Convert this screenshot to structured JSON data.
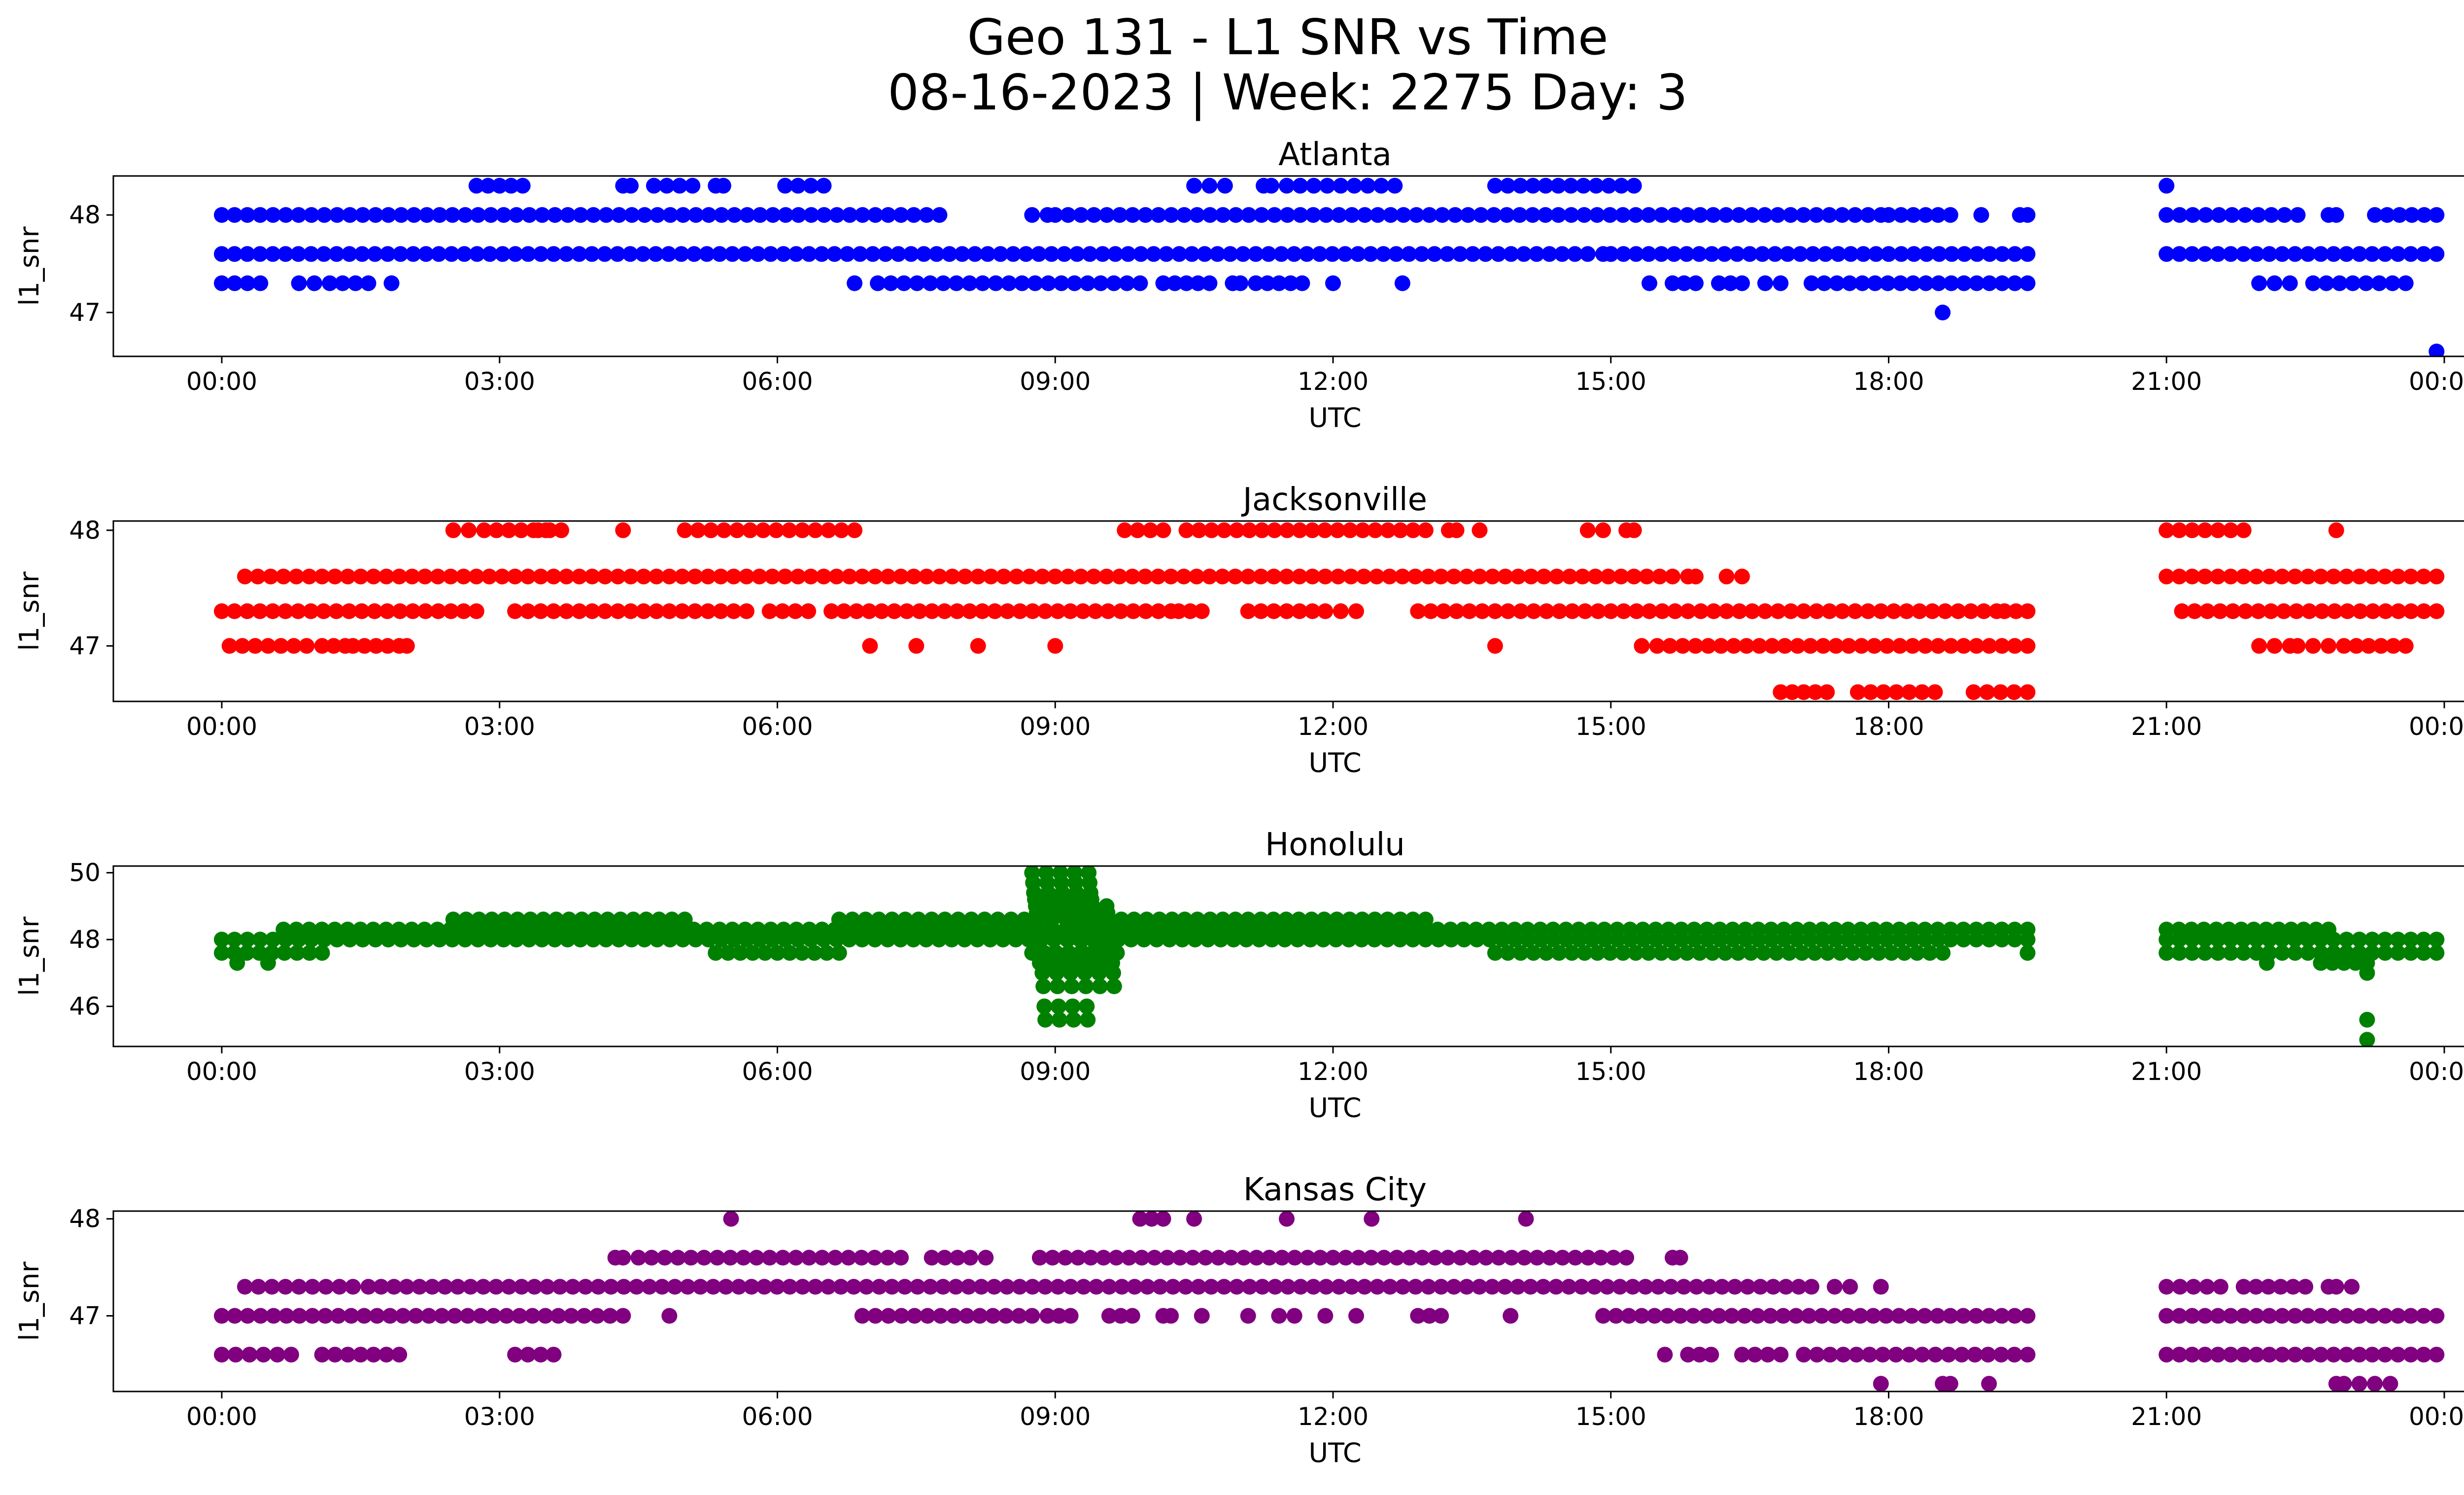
{
  "figure": {
    "title_line1": "Geo 131 - L1 SNR vs Time",
    "title_line2": "08-16-2023 | Week: 2275 Day: 3"
  },
  "chart_data": [
    {
      "type": "scatter",
      "title": "Atlanta",
      "xlabel": "UTC",
      "ylabel": "l1_snr",
      "color": "#0000ff",
      "xlim": [
        "2023-08-16T00:00",
        "2023-08-17T00:00"
      ],
      "ylim": [
        46.55,
        48.4
      ],
      "xticks": [
        "00:00",
        "03:00",
        "06:00",
        "09:00",
        "12:00",
        "15:00",
        "18:00",
        "21:00",
        "00:00"
      ],
      "yticks": [
        47,
        48
      ],
      "levels": [
        {
          "y": 48.3,
          "x_runs": [
            [
              "02:45",
              "03:15"
            ],
            [
              "04:20",
              "04:25"
            ],
            [
              "04:40",
              "05:05"
            ],
            [
              "05:20",
              "05:25"
            ],
            [
              "06:05",
              "06:30"
            ],
            [
              "10:30",
              "10:50"
            ],
            [
              "11:15",
              "11:20"
            ],
            [
              "11:30",
              "12:40"
            ],
            [
              "13:45",
              "15:15"
            ],
            [
              "21:00",
              "21:00"
            ]
          ]
        },
        {
          "y": 48.0,
          "x_runs": [
            [
              "00:00",
              "07:45"
            ],
            [
              "08:45",
              "08:55"
            ],
            [
              "09:00",
              "17:55"
            ],
            [
              "18:00",
              "18:40"
            ],
            [
              "19:00",
              "19:00"
            ],
            [
              "19:25",
              "19:30"
            ],
            [
              "21:00",
              "22:25"
            ],
            [
              "22:45",
              "22:50"
            ],
            [
              "23:15",
              "23:55"
            ]
          ]
        },
        {
          "y": 47.6,
          "x_runs": [
            [
              "00:00",
              "14:45"
            ],
            [
              "14:55",
              "15:00"
            ],
            [
              "15:00",
              "19:30"
            ],
            [
              "21:00",
              "23:55"
            ]
          ]
        },
        {
          "y": 47.3,
          "x_runs": [
            [
              "00:00",
              "00:25"
            ],
            [
              "00:50",
              "01:00"
            ],
            [
              "01:10",
              "01:35"
            ],
            [
              "01:50",
              "01:50"
            ],
            [
              "06:50",
              "06:50"
            ],
            [
              "07:05",
              "09:55"
            ],
            [
              "10:10",
              "10:40"
            ],
            [
              "10:55",
              "11:00"
            ],
            [
              "11:10",
              "11:40"
            ],
            [
              "12:00",
              "12:00"
            ],
            [
              "12:45",
              "12:45"
            ],
            [
              "15:25",
              "15:25"
            ],
            [
              "15:40",
              "15:55"
            ],
            [
              "16:10",
              "16:25"
            ],
            [
              "16:40",
              "16:50"
            ],
            [
              "17:10",
              "19:30"
            ],
            [
              "22:00",
              "22:20"
            ],
            [
              "22:35",
              "23:35"
            ]
          ]
        },
        {
          "y": 47.0,
          "x_runs": [
            [
              "18:35",
              "18:35"
            ]
          ]
        },
        {
          "y": 46.6,
          "x_runs": [
            [
              "23:55",
              "23:55"
            ]
          ]
        }
      ]
    },
    {
      "type": "scatter",
      "title": "Jacksonville",
      "xlabel": "UTC",
      "ylabel": "l1_snr",
      "color": "#ff0000",
      "xlim": [
        "2023-08-16T00:00",
        "2023-08-17T00:00"
      ],
      "ylim": [
        46.52,
        48.08
      ],
      "xticks": [
        "00:00",
        "03:00",
        "06:00",
        "09:00",
        "12:00",
        "15:00",
        "18:00",
        "21:00",
        "00:00"
      ],
      "yticks": [
        47,
        48
      ],
      "levels": [
        {
          "y": 48.0,
          "x_runs": [
            [
              "02:30",
              "02:40"
            ],
            [
              "02:50",
              "03:30"
            ],
            [
              "03:25",
              "03:40"
            ],
            [
              "04:20",
              "04:20"
            ],
            [
              "05:00",
              "06:50"
            ],
            [
              "09:45",
              "10:10"
            ],
            [
              "10:25",
              "13:00"
            ],
            [
              "13:15",
              "13:20"
            ],
            [
              "13:35",
              "13:35"
            ],
            [
              "14:45",
              "14:55"
            ],
            [
              "15:10",
              "15:15"
            ],
            [
              "21:00",
              "21:50"
            ],
            [
              "22:50",
              "22:50"
            ]
          ]
        },
        {
          "y": 47.6,
          "x_runs": [
            [
              "00:15",
              "15:40"
            ],
            [
              "15:50",
              "15:55"
            ],
            [
              "16:15",
              "16:25"
            ],
            [
              "21:00",
              "23:55"
            ]
          ]
        },
        {
          "y": 47.3,
          "x_runs": [
            [
              "00:00",
              "02:45"
            ],
            [
              "03:10",
              "05:40"
            ],
            [
              "05:55",
              "06:20"
            ],
            [
              "06:35",
              "10:15"
            ],
            [
              "10:20",
              "10:35"
            ],
            [
              "11:05",
              "11:55"
            ],
            [
              "12:05",
              "12:15"
            ],
            [
              "12:55",
              "19:10"
            ],
            [
              "19:15",
              "19:30"
            ],
            [
              "21:10",
              "23:55"
            ]
          ]
        },
        {
          "y": 47.0,
          "x_runs": [
            [
              "00:05",
              "00:55"
            ],
            [
              "01:05",
              "01:20"
            ],
            [
              "01:25",
              "01:55"
            ],
            [
              "02:00",
              "02:00"
            ],
            [
              "07:00",
              "07:00"
            ],
            [
              "07:30",
              "07:30"
            ],
            [
              "08:10",
              "08:10"
            ],
            [
              "09:00",
              "09:00"
            ],
            [
              "13:45",
              "13:45"
            ],
            [
              "15:20",
              "15:20"
            ],
            [
              "15:30",
              "19:30"
            ],
            [
              "22:00",
              "22:20"
            ],
            [
              "22:25",
              "22:45"
            ],
            [
              "22:55",
              "23:35"
            ]
          ]
        },
        {
          "y": 46.6,
          "x_runs": [
            [
              "16:50",
              "17:20"
            ],
            [
              "17:40",
              "18:30"
            ],
            [
              "18:55",
              "19:30"
            ]
          ]
        }
      ]
    },
    {
      "type": "scatter",
      "title": "Honolulu",
      "xlabel": "UTC",
      "ylabel": "l1_snr",
      "color": "#008000",
      "xlim": [
        "2023-08-16T00:00",
        "2023-08-17T00:00"
      ],
      "ylim": [
        44.8,
        50.2
      ],
      "xticks": [
        "00:00",
        "03:00",
        "06:00",
        "09:00",
        "12:00",
        "15:00",
        "18:00",
        "21:00",
        "00:00"
      ],
      "yticks": [
        46,
        48,
        50
      ],
      "levels": [
        {
          "y": 48.6,
          "x_runs": [
            [
              "02:30",
              "05:00"
            ],
            [
              "06:40",
              "08:40"
            ],
            [
              "09:10",
              "13:00"
            ]
          ]
        },
        {
          "y": 48.3,
          "x_runs": [
            [
              "00:40",
              "19:30"
            ],
            [
              "21:00",
              "22:45"
            ]
          ]
        },
        {
          "y": 48.0,
          "x_runs": [
            [
              "00:00",
              "19:30"
            ],
            [
              "21:00",
              "23:55"
            ]
          ]
        },
        {
          "y": 47.6,
          "x_runs": [
            [
              "00:00",
              "01:05"
            ],
            [
              "05:20",
              "06:40"
            ],
            [
              "08:45",
              "09:40"
            ],
            [
              "13:45",
              "18:35"
            ],
            [
              "19:30",
              "19:30"
            ],
            [
              "21:00",
              "23:55"
            ]
          ]
        },
        {
          "y": 47.3,
          "x_runs": [
            [
              "00:10",
              "00:10"
            ],
            [
              "00:30",
              "00:30"
            ],
            [
              "08:50",
              "09:30"
            ],
            [
              "22:05",
              "22:05"
            ],
            [
              "22:40",
              "23:10"
            ]
          ]
        }
      ],
      "spike": {
        "x_range": [
          "08:45",
          "09:40"
        ],
        "y_values": [
          50.0,
          49.7,
          49.4,
          49.2,
          49.0,
          48.8,
          48.6,
          48.3,
          48.0,
          47.6,
          47.3,
          47.0,
          46.6,
          46.0,
          45.6
        ],
        "extra_points": [
          {
            "x": "23:10",
            "y": 47.0
          },
          {
            "x": "23:10",
            "y": 45.6
          },
          {
            "x": "23:10",
            "y": 45.0
          }
        ]
      }
    },
    {
      "type": "scatter",
      "title": "Kansas City",
      "xlabel": "UTC",
      "ylabel": "l1_snr",
      "color": "#800080",
      "xlim": [
        "2023-08-16T00:00",
        "2023-08-17T00:00"
      ],
      "ylim": [
        46.22,
        48.08
      ],
      "xticks": [
        "00:00",
        "03:00",
        "06:00",
        "09:00",
        "12:00",
        "15:00",
        "18:00",
        "21:00",
        "00:00"
      ],
      "yticks": [
        47,
        48
      ],
      "levels": [
        {
          "y": 48.0,
          "x_runs": [
            [
              "05:30",
              "05:30"
            ],
            [
              "09:55",
              "10:10"
            ],
            [
              "10:30",
              "10:30"
            ],
            [
              "11:30",
              "11:30"
            ],
            [
              "12:25",
              "12:25"
            ],
            [
              "14:05",
              "14:05"
            ]
          ]
        },
        {
          "y": 47.6,
          "x_runs": [
            [
              "04:15",
              "04:20"
            ],
            [
              "04:30",
              "07:20"
            ],
            [
              "07:40",
              "08:05"
            ],
            [
              "08:15",
              "08:15"
            ],
            [
              "08:50",
              "15:10"
            ],
            [
              "15:40",
              "15:45"
            ]
          ]
        },
        {
          "y": 47.3,
          "x_runs": [
            [
              "00:15",
              "01:25"
            ],
            [
              "01:35",
              "17:10"
            ],
            [
              "17:25",
              "17:35"
            ],
            [
              "17:55",
              "17:55"
            ],
            [
              "21:00",
              "21:35"
            ],
            [
              "21:50",
              "22:30"
            ],
            [
              "22:45",
              "22:50"
            ],
            [
              "23:00",
              "23:00"
            ]
          ]
        },
        {
          "y": 47.0,
          "x_runs": [
            [
              "00:00",
              "04:20"
            ],
            [
              "04:50",
              "04:50"
            ],
            [
              "06:55",
              "08:45"
            ],
            [
              "08:55",
              "09:10"
            ],
            [
              "09:35",
              "09:50"
            ],
            [
              "10:10",
              "10:15"
            ],
            [
              "10:35",
              "10:35"
            ],
            [
              "11:05",
              "11:05"
            ],
            [
              "11:25",
              "11:35"
            ],
            [
              "11:55",
              "11:55"
            ],
            [
              "12:15",
              "12:15"
            ],
            [
              "12:55",
              "13:10"
            ],
            [
              "13:55",
              "13:55"
            ],
            [
              "14:55",
              "19:30"
            ],
            [
              "21:00",
              "23:55"
            ]
          ]
        },
        {
          "y": 46.6,
          "x_runs": [
            [
              "00:00",
              "00:45"
            ],
            [
              "01:05",
              "01:55"
            ],
            [
              "03:10",
              "03:35"
            ],
            [
              "15:35",
              "15:35"
            ],
            [
              "15:50",
              "16:05"
            ],
            [
              "16:25",
              "16:50"
            ],
            [
              "17:05",
              "19:30"
            ],
            [
              "21:00",
              "23:55"
            ]
          ]
        },
        {
          "y": 46.3,
          "x_runs": [
            [
              "17:55",
              "17:55"
            ],
            [
              "18:35",
              "18:40"
            ],
            [
              "19:05",
              "19:05"
            ],
            [
              "22:50",
              "22:55"
            ],
            [
              "23:05",
              "23:25"
            ]
          ]
        }
      ]
    }
  ]
}
